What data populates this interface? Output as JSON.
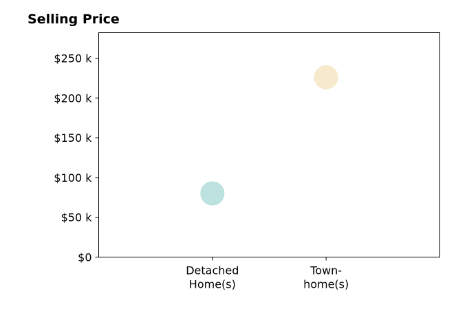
{
  "chart_data": {
    "type": "scatter",
    "title": "Selling Price",
    "xlabel": "",
    "ylabel": "",
    "categories": [
      [
        "Detached",
        "Home(s)"
      ],
      [
        "Town-",
        "home(s)"
      ]
    ],
    "x_category_slots": [
      1,
      2
    ],
    "xlim": [
      0,
      3
    ],
    "ylim": [
      0,
      282000
    ],
    "yticks": [
      0,
      50000,
      100000,
      150000,
      200000,
      250000
    ],
    "ytick_labels": [
      "$0",
      "$50 k",
      "$100 k",
      "$150 k",
      "$200 k",
      "$250 k"
    ],
    "points": [
      {
        "category": "Detached Home(s)",
        "value": 80000,
        "color": "#b6dfdc"
      },
      {
        "category": "Town-home(s)",
        "value": 226000,
        "color": "#f6e7c8"
      }
    ],
    "grid": false,
    "legend": "none"
  }
}
